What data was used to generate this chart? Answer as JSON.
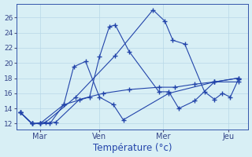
{
  "background_color": "#d8eff5",
  "grid_color": "#b8d8e8",
  "line_color": "#2244aa",
  "marker": "+",
  "xlabel": "Température (°c)",
  "ytick_values": [
    12,
    14,
    16,
    18,
    20,
    22,
    24,
    26
  ],
  "ylim": [
    11.2,
    27.8
  ],
  "xlim": [
    -0.2,
    11.5
  ],
  "xtick_labels": [
    "Mar",
    "Ven",
    "Mer",
    "Jeu"
  ],
  "xtick_pos": [
    1.0,
    4.0,
    7.2,
    10.5
  ],
  "series": [
    {
      "x": [
        0.0,
        0.6,
        1.0,
        2.2,
        2.7,
        3.3,
        4.0,
        4.7,
        5.2,
        7.5,
        9.8,
        11.0
      ],
      "y": [
        13.5,
        12.0,
        12.0,
        14.5,
        19.5,
        20.2,
        15.5,
        14.5,
        12.5,
        16.0,
        17.5,
        17.5
      ]
    },
    {
      "x": [
        0.0,
        0.6,
        1.0,
        1.5,
        2.2,
        3.5,
        4.0,
        4.5,
        4.8,
        5.5,
        7.0,
        7.5,
        8.0,
        8.8,
        9.8,
        11.0
      ],
      "y": [
        13.5,
        12.0,
        12.0,
        12.0,
        14.5,
        15.5,
        20.8,
        24.8,
        25.0,
        21.5,
        16.2,
        16.2,
        14.0,
        15.0,
        17.5,
        18.0
      ]
    },
    {
      "x": [
        0.0,
        0.6,
        1.0,
        1.8,
        3.0,
        4.2,
        5.5,
        7.0,
        7.8,
        8.8,
        9.8,
        11.0
      ],
      "y": [
        13.5,
        12.0,
        12.0,
        12.2,
        15.2,
        16.0,
        16.5,
        16.8,
        16.8,
        17.2,
        17.5,
        18.0
      ]
    },
    {
      "x": [
        0.0,
        0.6,
        1.3,
        2.8,
        4.8,
        6.7,
        7.3,
        7.7,
        8.3,
        9.3,
        9.8,
        10.2,
        10.6,
        11.0
      ],
      "y": [
        13.5,
        12.0,
        12.2,
        15.5,
        21.0,
        27.0,
        25.5,
        23.0,
        22.5,
        16.2,
        15.2,
        16.0,
        15.5,
        17.8
      ]
    }
  ]
}
